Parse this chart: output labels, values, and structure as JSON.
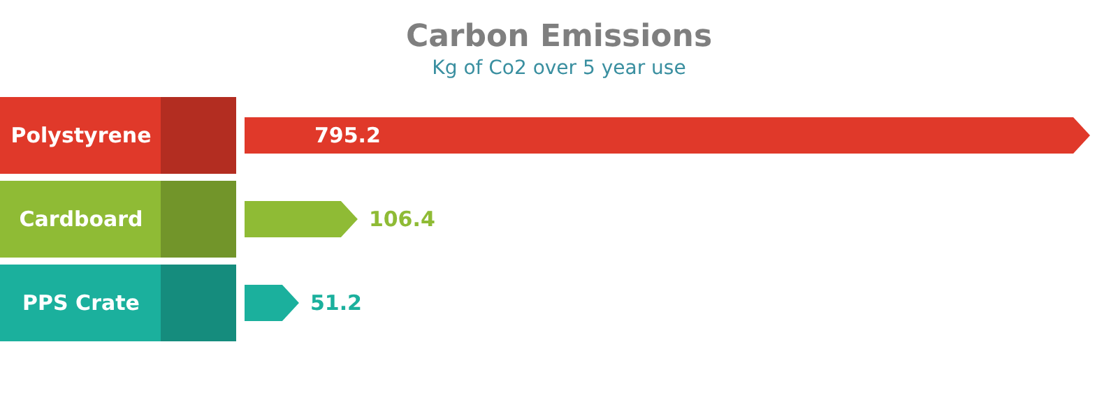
{
  "chart_data": {
    "type": "bar",
    "orientation": "horizontal",
    "title": "Carbon Emissions",
    "subtitle": "Kg of Co2 over 5 year use",
    "categories": [
      "Polystyrene",
      "Cardboard",
      "PPS Crate"
    ],
    "values": [
      795.2,
      106.4,
      51.2
    ],
    "colors": [
      "#e0392a",
      "#8fbb35",
      "#1bb09d"
    ],
    "data_labels": true
  }
}
